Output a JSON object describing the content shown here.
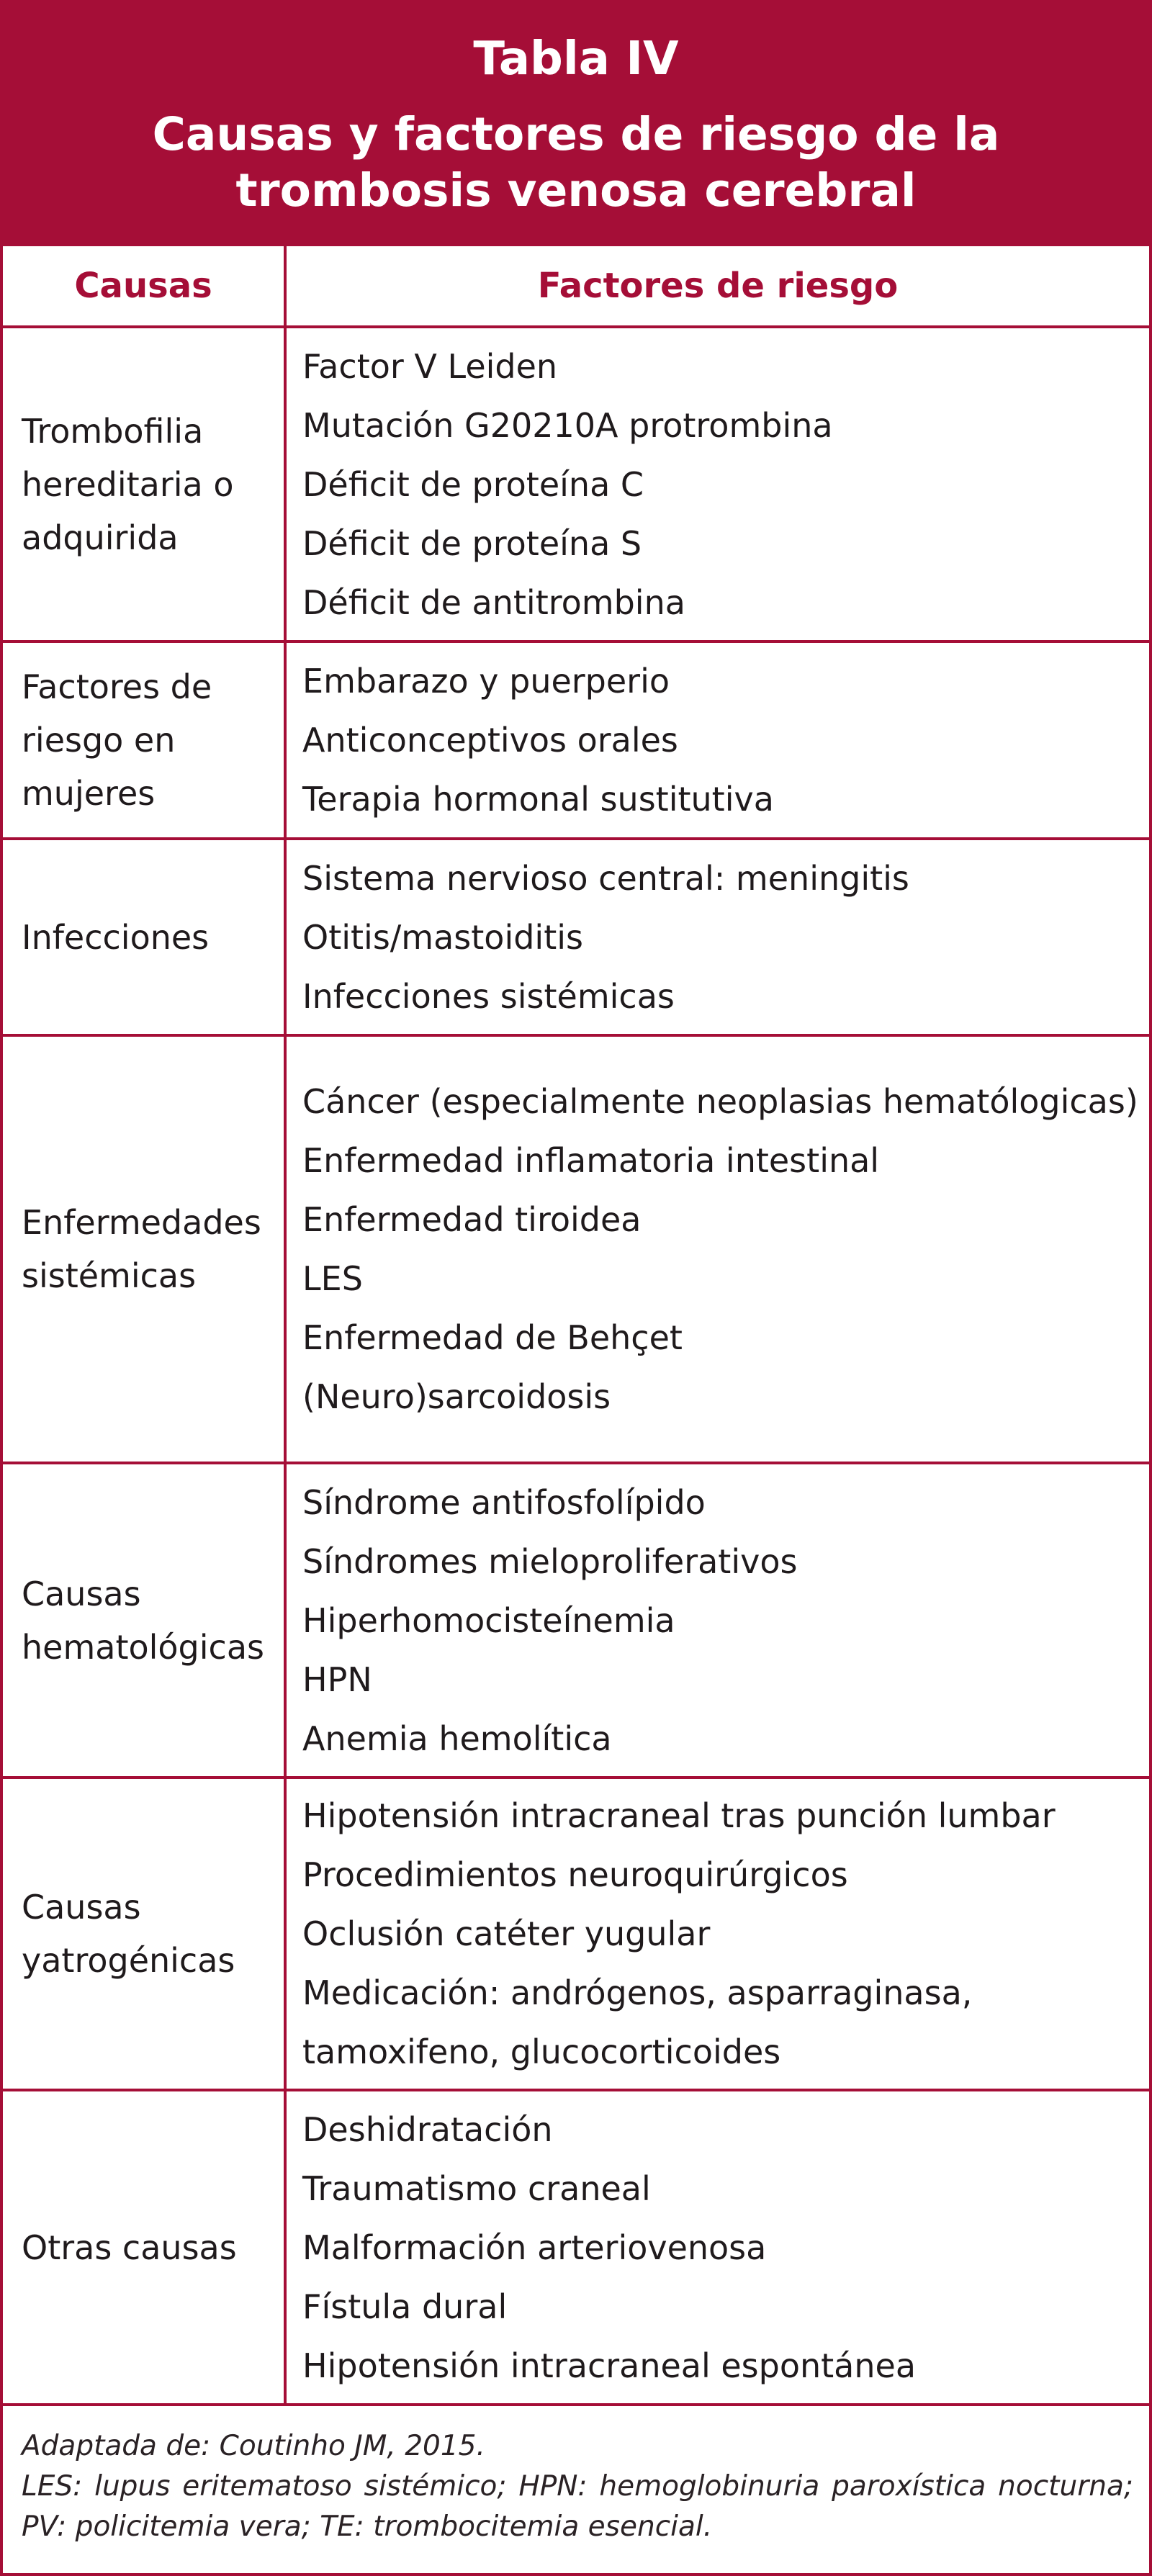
{
  "table": {
    "number": "Tabla IV",
    "title": "Causas y factores de riesgo de la trombosis venosa cerebral",
    "headers": {
      "causes": "Causas",
      "factors": "Factores de riesgo"
    },
    "rows": [
      {
        "cause": "Trombofilia hereditaria o adquirida",
        "factors": [
          "Factor V Leiden",
          "Mutación G20210A protrombina",
          "Déficit de proteína C",
          "Déficit de proteína S",
          "Déficit de antitrombina"
        ]
      },
      {
        "cause": "Factores de riesgo en mujeres",
        "factors": [
          "Embarazo y puerperio",
          "Anticonceptivos orales",
          "Terapia hormonal sustitutiva"
        ]
      },
      {
        "cause": "Infecciones",
        "factors": [
          "Sistema nervioso central: meningitis",
          "Otitis/mastoiditis",
          "Infecciones sistémicas"
        ]
      },
      {
        "cause": "Enfermedades sistémicas",
        "factors": [
          "Cáncer (especialmente neoplasias hematólogicas)",
          "Enfermedad inflamatoria intestinal",
          "Enfermedad tiroidea",
          "LES",
          "Enfermedad de Behçet",
          "(Neuro)sarcoidosis"
        ]
      },
      {
        "cause": "Causas hematológicas",
        "factors": [
          "Síndrome antifosfolípido",
          "Síndromes mieloproliferativos",
          "Hiperhomocisteínemia",
          "HPN",
          "Anemia hemolítica"
        ]
      },
      {
        "cause": "Causas yatrogénicas",
        "factors": [
          "Hipotensión intracraneal tras punción lumbar",
          "Procedimientos neuroquirúrgicos",
          "Oclusión catéter yugular",
          "Medicación: andrógenos, asparraginasa, tamoxifeno, glucocorticoides"
        ]
      },
      {
        "cause": "Otras causas",
        "factors": [
          "Deshidratación",
          "Traumatismo craneal",
          "Malformación arteriovenosa",
          "Fístula dural",
          "Hipotensión intracraneal espontánea"
        ]
      }
    ],
    "footnotes": {
      "source": "Adaptada de: Coutinho JM, 2015.",
      "abbreviations": "LES: lupus eritematoso sistémico; HPN: hemoglobinuria paroxística nocturna; PV: policitemia vera; TE: trombocitemia esencial."
    }
  },
  "colors": {
    "accent": "#a50e37",
    "header_text": "#ffffff",
    "body_text": "#1f1a1c"
  }
}
